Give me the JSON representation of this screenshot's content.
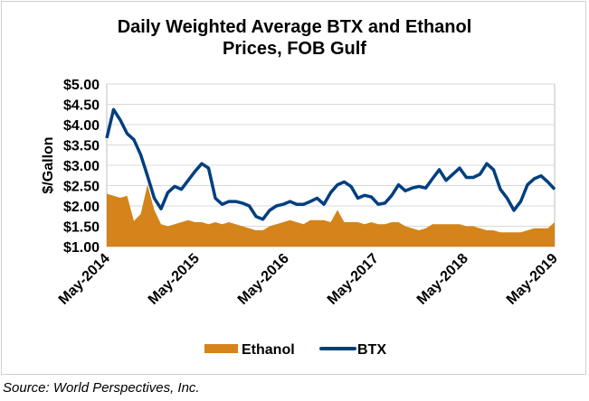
{
  "chart_data": {
    "type": "area",
    "title": "Daily Weighted Average BTX and Ethanol Prices, FOB Gulf",
    "title_lines": [
      "Daily Weighted Average BTX and Ethanol",
      "Prices, FOB Gulf"
    ],
    "ylabel": "$/Gallon",
    "xlabel": "",
    "ylim": [
      1.0,
      5.0
    ],
    "yticks": [
      "$1.00",
      "$1.50",
      "$2.00",
      "$2.50",
      "$3.00",
      "$3.50",
      "$4.00",
      "$4.50",
      "$5.00"
    ],
    "ytick_values": [
      1.0,
      1.5,
      2.0,
      2.5,
      3.0,
      3.5,
      4.0,
      4.5,
      5.0
    ],
    "xticks": [
      "May-2014",
      "May-2015",
      "May-2016",
      "May-2017",
      "May-2018",
      "May-2019"
    ],
    "x_range_months": [
      0,
      60
    ],
    "grid": true,
    "legend_position": "bottom",
    "series": [
      {
        "name": "Ethanol",
        "kind": "area",
        "color": "#D4841A",
        "values": [
          2.3,
          2.25,
          2.2,
          2.25,
          1.63,
          1.8,
          2.52,
          1.9,
          1.55,
          1.5,
          1.55,
          1.6,
          1.65,
          1.6,
          1.6,
          1.55,
          1.6,
          1.55,
          1.6,
          1.55,
          1.5,
          1.45,
          1.4,
          1.4,
          1.5,
          1.55,
          1.6,
          1.65,
          1.6,
          1.55,
          1.65,
          1.65,
          1.65,
          1.6,
          1.9,
          1.6,
          1.6,
          1.6,
          1.55,
          1.6,
          1.55,
          1.55,
          1.6,
          1.6,
          1.5,
          1.45,
          1.4,
          1.45,
          1.55,
          1.55,
          1.55,
          1.55,
          1.55,
          1.5,
          1.5,
          1.45,
          1.4,
          1.4,
          1.35,
          1.35,
          1.35,
          1.35,
          1.4,
          1.45,
          1.45,
          1.45,
          1.6
        ]
      },
      {
        "name": "BTX",
        "kind": "line",
        "color": "#003F7F",
        "values": [
          3.67,
          4.37,
          4.11,
          3.78,
          3.63,
          3.26,
          2.74,
          2.19,
          1.93,
          2.33,
          2.48,
          2.41,
          2.63,
          2.85,
          3.04,
          2.93,
          2.19,
          2.04,
          2.11,
          2.11,
          2.07,
          2.0,
          1.74,
          1.67,
          1.89,
          2.0,
          2.04,
          2.11,
          2.04,
          2.04,
          2.11,
          2.19,
          2.04,
          2.33,
          2.52,
          2.59,
          2.48,
          2.19,
          2.26,
          2.22,
          2.04,
          2.07,
          2.26,
          2.52,
          2.37,
          2.44,
          2.48,
          2.44,
          2.67,
          2.89,
          2.63,
          2.78,
          2.93,
          2.7,
          2.7,
          2.78,
          3.04,
          2.89,
          2.41,
          2.19,
          1.89,
          2.11,
          2.52,
          2.67,
          2.74,
          2.59,
          2.41
        ]
      }
    ]
  },
  "source": "Source: World Perspectives, Inc."
}
